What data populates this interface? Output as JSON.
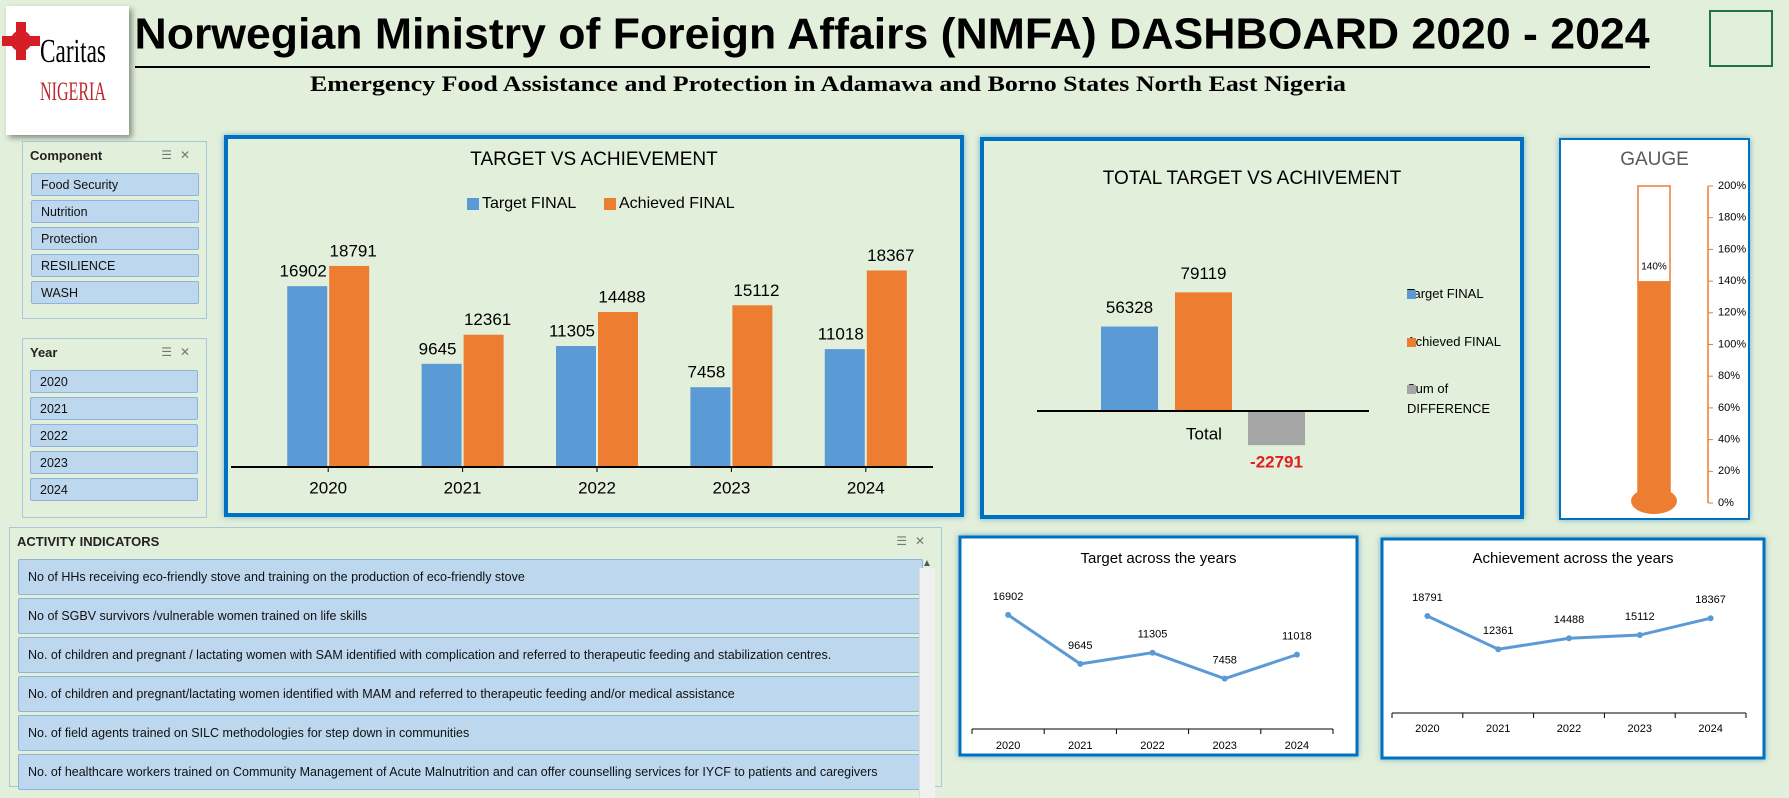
{
  "header": {
    "logo_name": "Caritas",
    "logo_country": "NIGERIA",
    "title": "Norwegian Ministry of Foreign Affairs (NMFA) DASHBOARD 2020 - 2024",
    "subtitle": "Emergency Food Assistance and Protection in Adamawa and Borno States North East Nigeria"
  },
  "slicers": [
    {
      "title": "Component",
      "items": [
        "Food Security",
        "Nutrition",
        "Protection",
        "RESILIENCE",
        "WASH"
      ]
    },
    {
      "title": "Year",
      "items": [
        "2020",
        "2021",
        "2022",
        "2023",
        "2024"
      ]
    },
    {
      "title": "ACTIVITY INDICATORS",
      "items": [
        "No of HHs receiving eco-friendly stove and training on the production of eco-friendly stove",
        "No of SGBV survivors /vulnerable women trained on life skills",
        "No. of children and pregnant / lactating women with SAM identified with complication and referred to therapeutic feeding and stabilization centres.",
        "No. of children and pregnant/lactating women identified with MAM and referred to therapeutic feeding and/or medical assistance",
        "No. of field agents trained on SILC methodologies for step down in communities",
        "No. of healthcare workers trained on Community Management of Acute Malnutrition and can offer counselling services for IYCF to patients and caregivers"
      ]
    }
  ],
  "chart_data": [
    {
      "type": "bar",
      "title": "TARGET VS ACHIEVEMENT",
      "categories": [
        "2020",
        "2021",
        "2022",
        "2023",
        "2024"
      ],
      "series": [
        {
          "name": "Target FINAL",
          "color": "#5b9bd5",
          "values": [
            16902,
            9645,
            11305,
            7458,
            11018
          ]
        },
        {
          "name": "Achieved FINAL",
          "color": "#ed7d31",
          "values": [
            18791,
            12361,
            14488,
            15112,
            18367
          ]
        }
      ],
      "ylim": [
        0,
        20000
      ]
    },
    {
      "type": "total-bar",
      "title": "TOTAL TARGET VS ACHIVEMENT",
      "categories": [
        "Total"
      ],
      "series": [
        {
          "name": "Target FINAL",
          "color": "#5b9bd5",
          "values": [
            56328
          ]
        },
        {
          "name": "Achieved FINAL",
          "color": "#ed7d31",
          "values": [
            79119
          ]
        },
        {
          "name": "Sum of DIFFERENCE",
          "color": "#a5a5a5",
          "values": [
            -22791
          ],
          "label_color": "#e02020"
        }
      ],
      "ylim": [
        -40000,
        120000
      ]
    },
    {
      "type": "gauge",
      "title": "GAUGE",
      "values": [
        140
      ],
      "value_labels": [
        "140%"
      ],
      "color": "#ed7d31",
      "ylim": [
        0,
        200
      ],
      "yticks": [
        {
          "value": 0,
          "label": "0%"
        },
        {
          "value": 20,
          "label": "20%"
        },
        {
          "value": 40,
          "label": "40%"
        },
        {
          "value": 60,
          "label": "60%"
        },
        {
          "value": 80,
          "label": "80%"
        },
        {
          "value": 100,
          "label": "100%"
        },
        {
          "value": 120,
          "label": "120%"
        },
        {
          "value": 140,
          "label": "140%"
        },
        {
          "value": 160,
          "label": "160%"
        },
        {
          "value": 180,
          "label": "180%"
        },
        {
          "value": 200,
          "label": "200%"
        }
      ]
    },
    {
      "type": "line",
      "title": "Target across the years",
      "categories": [
        "2020",
        "2021",
        "2022",
        "2023",
        "2024"
      ],
      "values": [
        16902,
        9645,
        11305,
        7458,
        11018
      ],
      "color": "#5b9bd5",
      "ylim": [
        0,
        20000
      ]
    },
    {
      "type": "line",
      "title": "Achievement across the years",
      "categories": [
        "2020",
        "2021",
        "2022",
        "2023",
        "2024"
      ],
      "values": [
        18791,
        12361,
        14488,
        15112,
        18367
      ],
      "color": "#5b9bd5",
      "ylim": [
        0,
        25000
      ]
    }
  ]
}
